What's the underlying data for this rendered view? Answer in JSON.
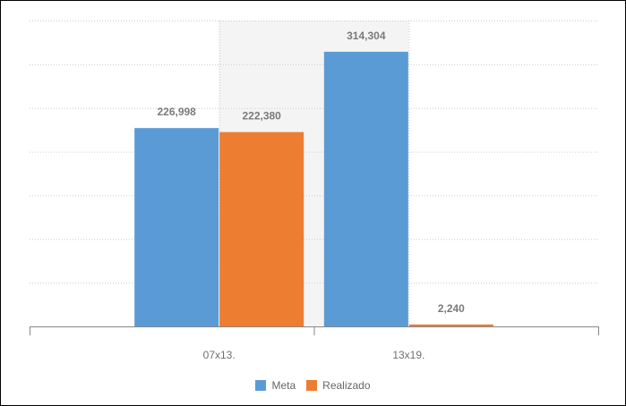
{
  "chart_data": {
    "type": "bar",
    "title": "",
    "xlabel": "",
    "ylabel": "",
    "categories": [
      "07x13.",
      "13x19."
    ],
    "ylim": [
      0,
      350000
    ],
    "grid": true,
    "legend_position": "bottom",
    "series": [
      {
        "name": "Meta",
        "color": "#5b9bd5",
        "values": [
          226998,
          314304
        ],
        "labels": [
          "226,998",
          "314,304"
        ]
      },
      {
        "name": "Realizado",
        "color": "#ed7d31",
        "values": [
          222380,
          2240
        ],
        "labels": [
          "222,380",
          "2,240"
        ]
      }
    ]
  },
  "colors": {
    "plot_band_alt": "#f4f4f4",
    "grid": "#cccccc",
    "axis": "#888888"
  }
}
